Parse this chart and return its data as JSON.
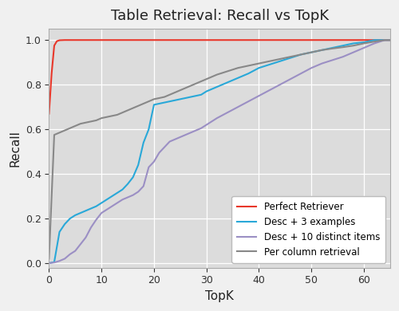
{
  "title": "Table Retrieval: Recall vs TopK",
  "xlabel": "TopK",
  "ylabel": "Recall",
  "xlim": [
    0,
    65
  ],
  "ylim": [
    -0.02,
    1.05
  ],
  "background_color": "#dcdcdc",
  "fig_facecolor": "#f0f0f0",
  "series": {
    "perfect": {
      "label": "Perfect Retriever",
      "color": "#e8372a",
      "x": [
        0,
        0.5,
        1,
        1.5,
        2,
        3,
        5,
        65
      ],
      "y": [
        0.67,
        0.85,
        0.975,
        0.995,
        0.999,
        1.0,
        1.0,
        1.0
      ]
    },
    "desc3": {
      "label": "Desc + 3 examples",
      "color": "#29a8d8",
      "x": [
        0,
        1,
        2,
        3,
        4,
        5,
        6,
        7,
        8,
        9,
        10,
        11,
        12,
        13,
        14,
        15,
        16,
        17,
        18,
        19,
        20,
        21,
        22,
        23,
        24,
        25,
        26,
        27,
        28,
        29,
        30,
        32,
        34,
        36,
        38,
        40,
        42,
        44,
        46,
        48,
        50,
        52,
        54,
        56,
        58,
        60,
        62,
        64,
        65
      ],
      "y": [
        0.0,
        0.005,
        0.14,
        0.175,
        0.2,
        0.215,
        0.225,
        0.235,
        0.245,
        0.255,
        0.27,
        0.285,
        0.3,
        0.315,
        0.33,
        0.355,
        0.385,
        0.44,
        0.54,
        0.6,
        0.71,
        0.715,
        0.72,
        0.725,
        0.73,
        0.735,
        0.74,
        0.745,
        0.75,
        0.755,
        0.77,
        0.79,
        0.81,
        0.83,
        0.85,
        0.875,
        0.89,
        0.905,
        0.92,
        0.935,
        0.945,
        0.955,
        0.965,
        0.975,
        0.985,
        0.99,
        1.0,
        1.0,
        1.0
      ]
    },
    "desc10": {
      "label": "Desc + 10 distinct items",
      "color": "#9b8fc4",
      "x": [
        0,
        1,
        2,
        3,
        4,
        5,
        6,
        7,
        8,
        9,
        10,
        11,
        12,
        13,
        14,
        15,
        16,
        17,
        18,
        19,
        20,
        21,
        22,
        23,
        24,
        25,
        26,
        27,
        28,
        29,
        30,
        32,
        34,
        36,
        38,
        40,
        42,
        44,
        46,
        48,
        50,
        52,
        54,
        56,
        58,
        60,
        62,
        64,
        65
      ],
      "y": [
        0.0,
        0.003,
        0.01,
        0.02,
        0.04,
        0.055,
        0.085,
        0.115,
        0.16,
        0.195,
        0.225,
        0.24,
        0.255,
        0.27,
        0.285,
        0.295,
        0.305,
        0.32,
        0.345,
        0.43,
        0.455,
        0.495,
        0.52,
        0.545,
        0.555,
        0.565,
        0.575,
        0.585,
        0.595,
        0.605,
        0.62,
        0.65,
        0.675,
        0.7,
        0.725,
        0.75,
        0.775,
        0.8,
        0.825,
        0.85,
        0.875,
        0.895,
        0.91,
        0.925,
        0.945,
        0.965,
        0.985,
        1.0,
        1.0
      ]
    },
    "percol": {
      "label": "Per column retrieval",
      "color": "#888888",
      "x": [
        0,
        1,
        2,
        3,
        4,
        5,
        6,
        7,
        8,
        9,
        10,
        11,
        12,
        13,
        14,
        15,
        16,
        17,
        18,
        19,
        20,
        21,
        22,
        23,
        24,
        25,
        26,
        27,
        28,
        29,
        30,
        32,
        34,
        36,
        38,
        40,
        42,
        44,
        46,
        48,
        50,
        52,
        54,
        56,
        58,
        60,
        62,
        64,
        65
      ],
      "y": [
        0.02,
        0.575,
        0.585,
        0.595,
        0.605,
        0.615,
        0.625,
        0.63,
        0.635,
        0.64,
        0.65,
        0.655,
        0.66,
        0.665,
        0.675,
        0.685,
        0.695,
        0.705,
        0.715,
        0.725,
        0.735,
        0.74,
        0.745,
        0.755,
        0.765,
        0.775,
        0.785,
        0.795,
        0.805,
        0.815,
        0.825,
        0.845,
        0.86,
        0.875,
        0.885,
        0.895,
        0.905,
        0.915,
        0.925,
        0.935,
        0.945,
        0.955,
        0.962,
        0.968,
        0.975,
        0.985,
        0.993,
        1.0,
        1.0
      ]
    }
  },
  "xticks": [
    0,
    10,
    20,
    30,
    40,
    50,
    60
  ],
  "yticks": [
    0.0,
    0.2,
    0.4,
    0.6,
    0.8,
    1.0
  ],
  "legend_loc": "lower right",
  "grid": true
}
